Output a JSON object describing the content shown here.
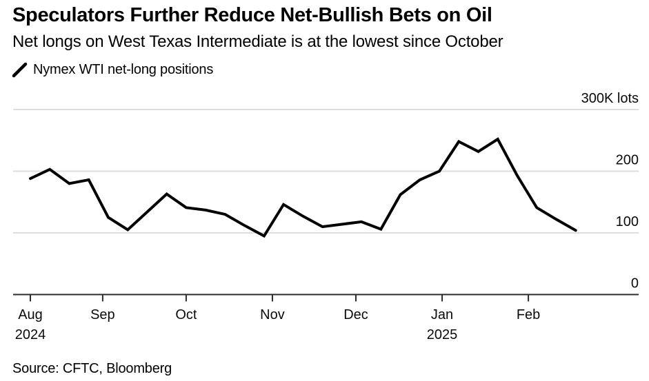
{
  "header": {
    "title": "Speculators Further Reduce Net-Bullish Bets on Oil",
    "subtitle": "Net longs on West Texas Intermediate is at the lowest since October"
  },
  "legend": {
    "icon": "diagonal-line-mark",
    "label": "Nymex WTI net-long positions"
  },
  "source": "Source: CFTC, Bloomberg",
  "colors": {
    "line": "#000000",
    "grid": "#dedede",
    "axis": "#2b2b2b",
    "text": "#0a0a0a"
  },
  "chart_data": {
    "type": "line",
    "title": "Nymex WTI net-long positions",
    "unit": "K lots",
    "ylim": [
      0,
      300
    ],
    "grid": "horizontal-only",
    "legend_position": "top-left",
    "y_ticks": [
      {
        "value": 0,
        "label": "0"
      },
      {
        "value": 100,
        "label": "100"
      },
      {
        "value": 200,
        "label": "200"
      },
      {
        "value": 300,
        "label": "300K lots"
      }
    ],
    "x_ticks": [
      {
        "date": "2024-08-06",
        "label": "Aug",
        "year": "2024"
      },
      {
        "date": "2024-09-01",
        "label": "Sep"
      },
      {
        "date": "2024-10-01",
        "label": "Oct"
      },
      {
        "date": "2024-11-01",
        "label": "Nov"
      },
      {
        "date": "2024-12-01",
        "label": "Dec"
      },
      {
        "date": "2025-01-01",
        "label": "Jan",
        "year": "2025"
      },
      {
        "date": "2025-02-01",
        "label": "Feb"
      }
    ],
    "series": [
      {
        "name": "Nymex WTI net-long positions",
        "points": [
          {
            "date": "2024-08-06",
            "value": 188
          },
          {
            "date": "2024-08-13",
            "value": 203
          },
          {
            "date": "2024-08-20",
            "value": 180
          },
          {
            "date": "2024-08-27",
            "value": 186
          },
          {
            "date": "2024-09-03",
            "value": 125
          },
          {
            "date": "2024-09-10",
            "value": 105
          },
          {
            "date": "2024-09-17",
            "value": 134
          },
          {
            "date": "2024-09-24",
            "value": 163
          },
          {
            "date": "2024-10-01",
            "value": 141
          },
          {
            "date": "2024-10-08",
            "value": 137
          },
          {
            "date": "2024-10-15",
            "value": 130
          },
          {
            "date": "2024-10-22",
            "value": 112
          },
          {
            "date": "2024-10-29",
            "value": 95
          },
          {
            "date": "2024-11-05",
            "value": 146
          },
          {
            "date": "2024-11-12",
            "value": 127
          },
          {
            "date": "2024-11-19",
            "value": 110
          },
          {
            "date": "2024-11-26",
            "value": 114
          },
          {
            "date": "2024-12-03",
            "value": 118
          },
          {
            "date": "2024-12-10",
            "value": 106
          },
          {
            "date": "2024-12-17",
            "value": 162
          },
          {
            "date": "2024-12-24",
            "value": 186
          },
          {
            "date": "2024-12-31",
            "value": 200
          },
          {
            "date": "2025-01-07",
            "value": 248
          },
          {
            "date": "2025-01-14",
            "value": 232
          },
          {
            "date": "2025-01-21",
            "value": 252
          },
          {
            "date": "2025-01-28",
            "value": 193
          },
          {
            "date": "2025-02-04",
            "value": 141
          },
          {
            "date": "2025-02-11",
            "value": 122
          },
          {
            "date": "2025-02-18",
            "value": 104
          }
        ]
      }
    ]
  }
}
